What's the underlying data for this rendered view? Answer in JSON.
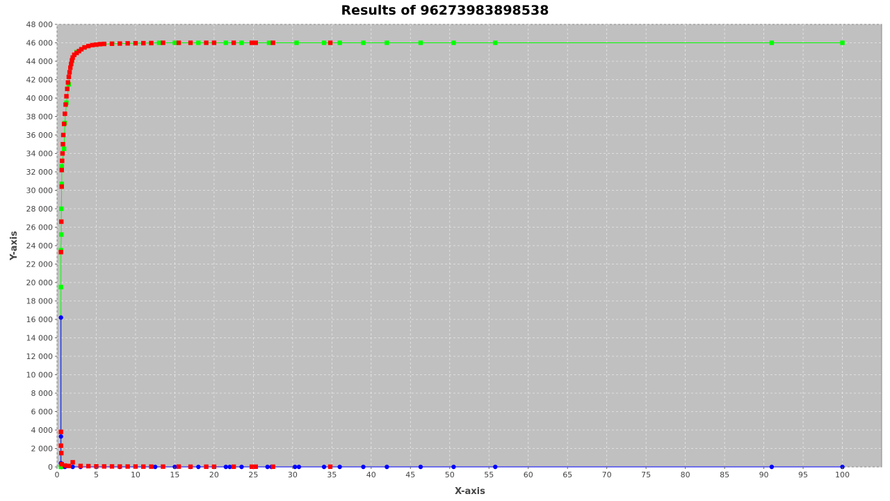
{
  "chart_data": {
    "type": "scatter",
    "title": "Results of 96273983898538",
    "xlabel": "X-axis",
    "ylabel": "Y-axis",
    "xlim": [
      0,
      105
    ],
    "ylim": [
      0,
      48000
    ],
    "x_ticks": [
      0,
      5,
      10,
      15,
      20,
      25,
      30,
      35,
      40,
      45,
      50,
      55,
      60,
      65,
      70,
      75,
      80,
      85,
      90,
      95,
      100
    ],
    "x_tick_labels": [
      "0",
      "5",
      "10",
      "15",
      "20",
      "25",
      "30",
      "35",
      "40",
      "45",
      "50",
      "55",
      "60",
      "65",
      "70",
      "75",
      "80",
      "85",
      "90",
      "95",
      "100"
    ],
    "y_ticks": [
      0,
      2000,
      4000,
      6000,
      8000,
      10000,
      12000,
      14000,
      16000,
      18000,
      20000,
      22000,
      24000,
      26000,
      28000,
      30000,
      32000,
      34000,
      36000,
      38000,
      40000,
      42000,
      44000,
      46000,
      48000
    ],
    "y_tick_labels": [
      "0",
      "2 000",
      "4 000",
      "6 000",
      "8 000",
      "10 000",
      "12 000",
      "14 000",
      "16 000",
      "18 000",
      "20 000",
      "22 000",
      "24 000",
      "26 000",
      "28 000",
      "30 000",
      "32 000",
      "34 000",
      "36 000",
      "38 000",
      "40 000",
      "42 000",
      "44 000",
      "46 000",
      "48 000"
    ],
    "grid": true,
    "colors": {
      "plot_bg": "#c0c0c0",
      "grid": "#e8e8e8",
      "green": "#00ff00",
      "red": "#ff0000",
      "blue": "#0000ff"
    },
    "series": [
      {
        "name": "green-series",
        "marker": "square",
        "line": true,
        "points": [
          [
            0.5,
            0
          ],
          [
            0.5,
            19500
          ],
          [
            0.5,
            23500
          ],
          [
            0.55,
            25200
          ],
          [
            0.55,
            28000
          ],
          [
            0.6,
            30700
          ],
          [
            0.6,
            32600
          ],
          [
            0.9,
            34500
          ],
          [
            1.0,
            37300
          ],
          [
            1.2,
            39500
          ],
          [
            1.5,
            41500
          ],
          [
            1.9,
            44000
          ],
          [
            2.5,
            45000
          ],
          [
            3.5,
            45500
          ],
          [
            5,
            45800
          ],
          [
            7,
            45900
          ],
          [
            10,
            45950
          ],
          [
            13,
            46000
          ],
          [
            15,
            46000
          ],
          [
            18,
            46000
          ],
          [
            21.5,
            46000
          ],
          [
            23.5,
            46000
          ],
          [
            27,
            46000
          ],
          [
            30.5,
            46000
          ],
          [
            34,
            46000
          ],
          [
            36,
            46000
          ],
          [
            39,
            46000
          ],
          [
            42,
            46000
          ],
          [
            46.3,
            46000
          ],
          [
            50.5,
            46000
          ],
          [
            55.8,
            46000
          ],
          [
            91,
            46000
          ],
          [
            100,
            46000
          ]
        ]
      },
      {
        "name": "red-series",
        "marker": "square",
        "line": false,
        "points": [
          [
            0.5,
            23300
          ],
          [
            0.55,
            26600
          ],
          [
            0.6,
            30400
          ],
          [
            0.6,
            32200
          ],
          [
            0.65,
            33200
          ],
          [
            0.7,
            34000
          ],
          [
            0.75,
            35000
          ],
          [
            0.8,
            36000
          ],
          [
            0.9,
            37200
          ],
          [
            1.0,
            38300
          ],
          [
            1.1,
            39300
          ],
          [
            1.2,
            40200
          ],
          [
            1.3,
            41000
          ],
          [
            1.4,
            41700
          ],
          [
            1.5,
            42300
          ],
          [
            1.6,
            42800
          ],
          [
            1.7,
            43300
          ],
          [
            1.8,
            43700
          ],
          [
            1.9,
            44100
          ],
          [
            2.0,
            44400
          ],
          [
            2.2,
            44700
          ],
          [
            2.5,
            44900
          ],
          [
            2.8,
            45100
          ],
          [
            3.1,
            45300
          ],
          [
            3.5,
            45500
          ],
          [
            4.0,
            45650
          ],
          [
            4.5,
            45750
          ],
          [
            5.0,
            45800
          ],
          [
            5.5,
            45850
          ],
          [
            6.0,
            45880
          ],
          [
            7.0,
            45900
          ],
          [
            8.0,
            45920
          ],
          [
            9.0,
            45940
          ],
          [
            10.0,
            45950
          ],
          [
            11.0,
            45960
          ],
          [
            12.0,
            45970
          ],
          [
            13.5,
            46000
          ],
          [
            15.5,
            46000
          ],
          [
            17,
            46000
          ],
          [
            19,
            46000
          ],
          [
            20,
            46000
          ],
          [
            22.5,
            46000
          ],
          [
            24.8,
            46000
          ],
          [
            25.3,
            46000
          ],
          [
            27.5,
            46000
          ],
          [
            34.8,
            46000
          ],
          [
            0.5,
            3800
          ],
          [
            0.5,
            2300
          ],
          [
            0.55,
            1500
          ],
          [
            0.6,
            300
          ],
          [
            1.0,
            150
          ],
          [
            1.5,
            100
          ],
          [
            2.0,
            500
          ],
          [
            3,
            100
          ],
          [
            4,
            80
          ],
          [
            5,
            60
          ],
          [
            6,
            50
          ],
          [
            7,
            50
          ],
          [
            8,
            40
          ],
          [
            9,
            40
          ],
          [
            10,
            40
          ],
          [
            11,
            30
          ],
          [
            12,
            30
          ],
          [
            13.5,
            30
          ],
          [
            15.5,
            30
          ],
          [
            17,
            20
          ],
          [
            19,
            20
          ],
          [
            20,
            20
          ],
          [
            22.5,
            20
          ],
          [
            24.8,
            20
          ],
          [
            25.3,
            20
          ],
          [
            27.5,
            20
          ],
          [
            34.8,
            20
          ]
        ]
      },
      {
        "name": "blue-series",
        "marker": "circle",
        "line": true,
        "points": [
          [
            0.5,
            0
          ],
          [
            0.5,
            16200
          ],
          [
            0.5,
            3300
          ],
          [
            0.5,
            400
          ],
          [
            0.6,
            0
          ],
          [
            1,
            0
          ],
          [
            2,
            0
          ],
          [
            3,
            0
          ],
          [
            5,
            0
          ],
          [
            8,
            0
          ],
          [
            12.5,
            0
          ],
          [
            15,
            0
          ],
          [
            17,
            0
          ],
          [
            18,
            0
          ],
          [
            20,
            0
          ],
          [
            21.5,
            0
          ],
          [
            22,
            0
          ],
          [
            23.5,
            0
          ],
          [
            25,
            0
          ],
          [
            26.8,
            0
          ],
          [
            27.3,
            0
          ],
          [
            30.3,
            0
          ],
          [
            30.8,
            0
          ],
          [
            34,
            0
          ],
          [
            36,
            0
          ],
          [
            39,
            0
          ],
          [
            42,
            0
          ],
          [
            46.3,
            0
          ],
          [
            50.5,
            0
          ],
          [
            55.8,
            0
          ],
          [
            91,
            0
          ],
          [
            100,
            0
          ]
        ]
      }
    ]
  }
}
